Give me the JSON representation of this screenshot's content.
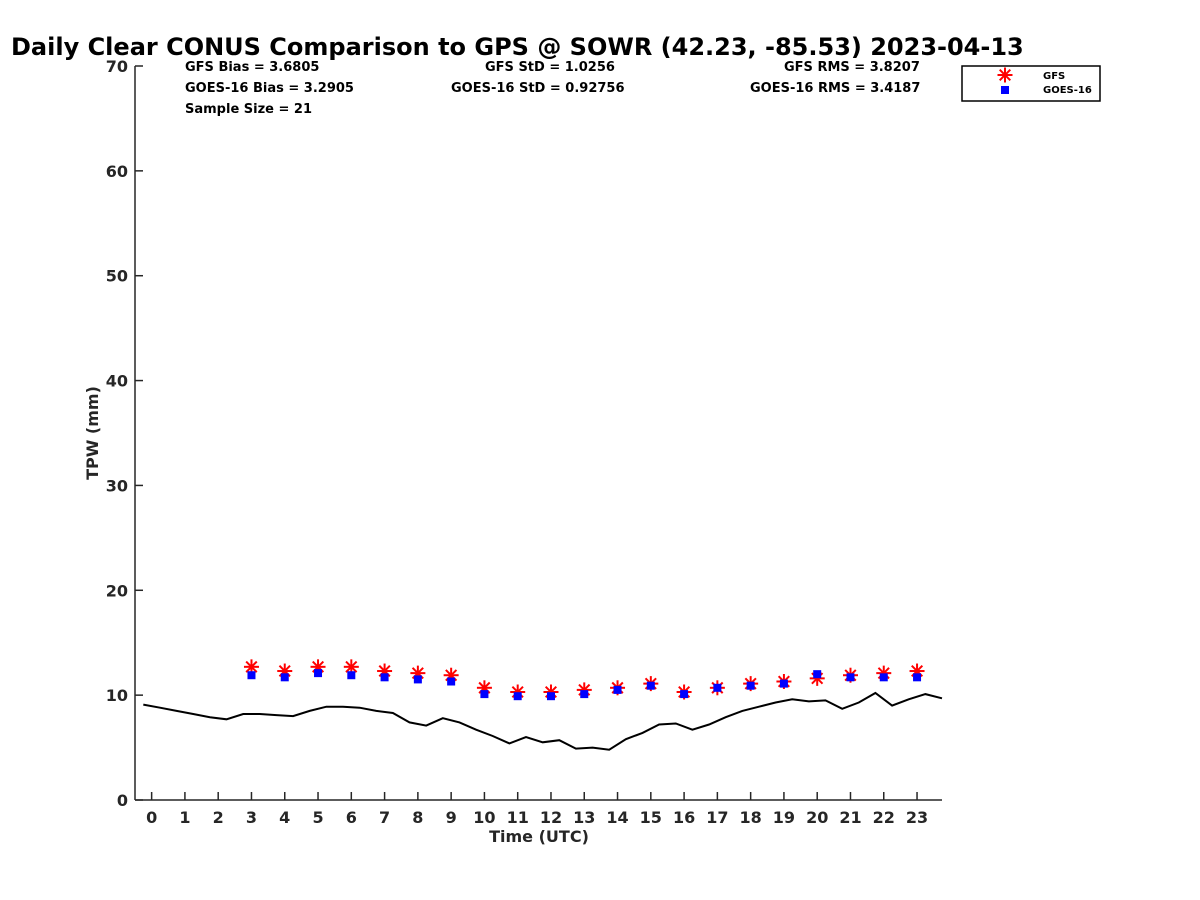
{
  "chart_data": {
    "type": "scatter",
    "title": "Daily Clear CONUS Comparison to GPS @ SOWR (42.23, -85.53) 2023-04-13",
    "xlabel": "Time (UTC)",
    "ylabel": "TPW (mm)",
    "xlim": [
      -0.5,
      23.75
    ],
    "ylim": [
      0,
      70
    ],
    "x_ticks": [
      "0",
      "1",
      "2",
      "3",
      "4",
      "5",
      "6",
      "7",
      "8",
      "9",
      "10",
      "11",
      "12",
      "13",
      "14",
      "15",
      "16",
      "17",
      "18",
      "19",
      "20",
      "21",
      "22",
      "23"
    ],
    "y_ticks": [
      "0",
      "10",
      "20",
      "30",
      "40",
      "50",
      "60",
      "70"
    ],
    "grid": false,
    "legend_position": "top-right",
    "stats": {
      "gfs_bias": "GFS Bias = 3.6805",
      "goes_bias": "GOES-16 Bias = 3.2905",
      "sample_size": "Sample Size = 21",
      "gfs_std": "GFS StD = 1.0256",
      "goes_std": "GOES-16 StD = 0.92756",
      "gfs_rms": "GFS RMS = 3.8207",
      "goes_rms": "GOES-16 RMS = 3.4187"
    },
    "series": [
      {
        "name": "GFS",
        "marker": "asterisk",
        "color": "#ff0000",
        "x": [
          3,
          4,
          5,
          6,
          7,
          8,
          9,
          10,
          11,
          12,
          13,
          14,
          15,
          16,
          17,
          18,
          19,
          20,
          21,
          22,
          23
        ],
        "y": [
          12.7,
          12.3,
          12.7,
          12.7,
          12.3,
          12.1,
          11.9,
          10.7,
          10.3,
          10.3,
          10.5,
          10.7,
          11.1,
          10.3,
          10.7,
          11.1,
          11.3,
          11.6,
          11.9,
          12.1,
          12.3
        ]
      },
      {
        "name": "GOES-16",
        "marker": "square",
        "color": "#0000ff",
        "x": [
          3,
          4,
          5,
          6,
          7,
          8,
          9,
          10,
          11,
          12,
          13,
          14,
          15,
          16,
          17,
          18,
          19,
          20,
          21,
          22,
          23
        ],
        "y": [
          11.9,
          11.7,
          12.1,
          11.9,
          11.7,
          11.5,
          11.3,
          10.1,
          9.9,
          9.9,
          10.1,
          10.5,
          10.9,
          10.1,
          10.7,
          10.9,
          11.1,
          12.0,
          11.7,
          11.7,
          11.7
        ]
      },
      {
        "marker": "line",
        "color": "#000000",
        "x": [
          -0.25,
          0.25,
          0.75,
          1.25,
          1.75,
          2.25,
          2.75,
          3.25,
          3.75,
          4.25,
          4.75,
          5.25,
          5.75,
          6.25,
          6.75,
          7.25,
          7.75,
          8.25,
          8.75,
          9.25,
          9.75,
          10.25,
          10.75,
          11.25,
          11.75,
          12.25,
          12.75,
          13.25,
          13.75,
          14.25,
          14.75,
          15.25,
          15.75,
          16.25,
          16.75,
          17.25,
          17.75,
          18.25,
          18.75,
          19.25,
          19.75,
          20.25,
          20.75,
          21.25,
          21.75,
          22.25,
          22.75,
          23.25,
          23.75
        ],
        "y": [
          9.1,
          8.8,
          8.5,
          8.2,
          7.9,
          7.7,
          8.2,
          8.2,
          8.1,
          8.0,
          8.5,
          8.9,
          8.9,
          8.8,
          8.5,
          8.3,
          7.4,
          7.1,
          7.8,
          7.4,
          6.7,
          6.1,
          5.4,
          6.0,
          5.5,
          5.7,
          4.9,
          5.0,
          4.8,
          5.8,
          6.4,
          7.2,
          7.3,
          6.7,
          7.2,
          7.9,
          8.5,
          8.9,
          9.3,
          9.6,
          9.4,
          9.5,
          8.7,
          9.3,
          10.2,
          9.0,
          9.6,
          10.1,
          9.7
        ]
      }
    ]
  }
}
